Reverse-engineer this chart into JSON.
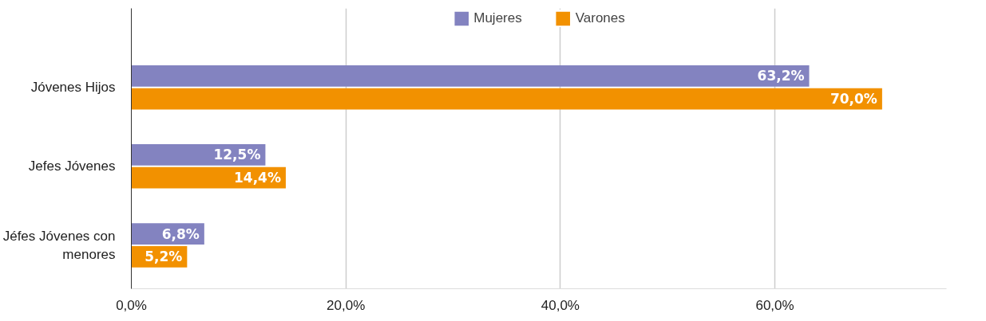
{
  "chart_data": {
    "type": "bar",
    "orientation": "horizontal",
    "categories": [
      "Jóvenes Hijos",
      "Jefes Jóvenes",
      "Jéfes Jóvenes con menores"
    ],
    "series": [
      {
        "name": "Mujeres",
        "color": "#8383c0",
        "values": [
          63.2,
          12.5,
          6.8
        ],
        "value_labels": [
          "63,2%",
          "12,5%",
          "6,8%"
        ]
      },
      {
        "name": "Varones",
        "color": "#f29100",
        "values": [
          70.0,
          14.4,
          5.2
        ],
        "value_labels": [
          "70,0%",
          "14,4%",
          "5,2%"
        ]
      }
    ],
    "xlim": [
      0,
      76
    ],
    "xticks": [
      {
        "value": 0,
        "label": "0,0%"
      },
      {
        "value": 20,
        "label": "20,0%"
      },
      {
        "value": 40,
        "label": "40,0%"
      },
      {
        "value": 60,
        "label": "60,0%"
      }
    ],
    "grid": "x",
    "legend": "top"
  }
}
